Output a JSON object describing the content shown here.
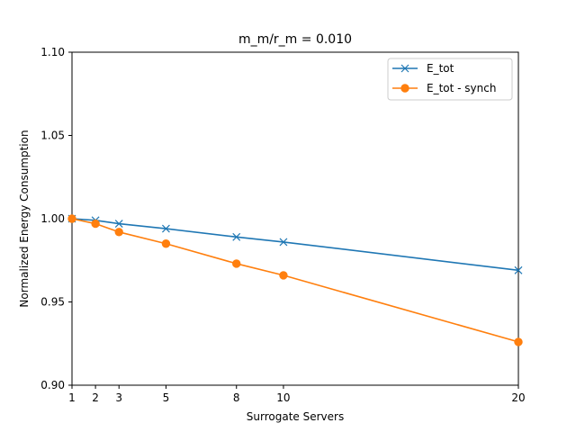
{
  "chart_data": {
    "type": "line",
    "title": "m_m/r_m = 0.010",
    "xlabel": "Surrogate Servers",
    "ylabel": "Normalized Energy Consumption",
    "xlim": [
      1,
      20
    ],
    "ylim": [
      0.9,
      1.1
    ],
    "xticks": [
      1,
      2,
      3,
      5,
      8,
      10,
      20
    ],
    "yticks": [
      0.9,
      0.95,
      1.0,
      1.05,
      1.1
    ],
    "ytick_labels": [
      "0.90",
      "0.95",
      "1.00",
      "1.05",
      "1.10"
    ],
    "grid": false,
    "legend_position": "top-right",
    "series": [
      {
        "name": "E_tot",
        "color": "#1f77b4",
        "marker": "x",
        "x": [
          1,
          2,
          3,
          5,
          8,
          10,
          20
        ],
        "values": [
          1.0,
          0.999,
          0.997,
          0.994,
          0.989,
          0.986,
          0.969
        ]
      },
      {
        "name": "E_tot - synch",
        "color": "#ff7f0e",
        "marker": "o",
        "x": [
          1,
          2,
          3,
          5,
          8,
          10,
          20
        ],
        "values": [
          1.0,
          0.997,
          0.992,
          0.985,
          0.973,
          0.966,
          0.926
        ]
      }
    ]
  }
}
